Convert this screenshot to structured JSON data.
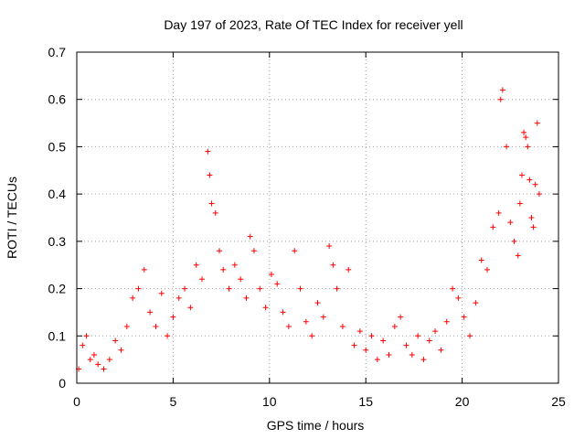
{
  "chart_data": {
    "type": "scatter",
    "title": "Day 197 of 2023, Rate Of TEC Index for receiver yell",
    "xlabel": "GPS time / hours",
    "ylabel": "ROTI / TECUs",
    "xlim": [
      0,
      25
    ],
    "ylim": [
      0,
      0.7
    ],
    "x_ticks": [
      "0",
      "5",
      "10",
      "15",
      "20",
      "25"
    ],
    "y_ticks": [
      "0",
      "0.1",
      "0.2",
      "0.3",
      "0.4",
      "0.5",
      "0.6",
      "0.7"
    ],
    "grid": true,
    "marker": "+",
    "color": "#ff0000",
    "series": [
      {
        "name": "ROTI",
        "x": [
          0.1,
          0.3,
          0.5,
          0.7,
          0.9,
          1.1,
          1.4,
          1.7,
          2.0,
          2.3,
          2.6,
          2.9,
          3.2,
          3.5,
          3.8,
          4.1,
          4.4,
          4.7,
          5.0,
          5.3,
          5.6,
          5.9,
          6.2,
          6.5,
          6.8,
          6.9,
          7.0,
          7.2,
          7.4,
          7.6,
          7.9,
          8.2,
          8.5,
          8.8,
          9.0,
          9.2,
          9.5,
          9.8,
          10.1,
          10.4,
          10.7,
          11.0,
          11.3,
          11.6,
          11.9,
          12.2,
          12.5,
          12.8,
          13.1,
          13.3,
          13.5,
          13.8,
          14.1,
          14.4,
          14.7,
          15.0,
          15.3,
          15.6,
          15.9,
          16.2,
          16.5,
          16.8,
          17.1,
          17.4,
          17.7,
          18.0,
          18.3,
          18.6,
          18.9,
          19.2,
          19.5,
          19.8,
          20.1,
          20.4,
          20.7,
          21.0,
          21.3,
          21.6,
          21.9,
          22.0,
          22.1,
          22.3,
          22.5,
          22.7,
          22.9,
          23.0,
          23.1,
          23.2,
          23.3,
          23.4,
          23.5,
          23.6,
          23.7,
          23.8,
          23.9,
          24.0
        ],
        "y": [
          0.03,
          0.08,
          0.1,
          0.05,
          0.06,
          0.04,
          0.03,
          0.05,
          0.09,
          0.07,
          0.12,
          0.18,
          0.2,
          0.24,
          0.15,
          0.12,
          0.19,
          0.1,
          0.14,
          0.18,
          0.2,
          0.16,
          0.25,
          0.22,
          0.49,
          0.44,
          0.38,
          0.36,
          0.28,
          0.24,
          0.2,
          0.25,
          0.22,
          0.18,
          0.31,
          0.28,
          0.2,
          0.16,
          0.23,
          0.21,
          0.15,
          0.12,
          0.28,
          0.2,
          0.13,
          0.1,
          0.17,
          0.14,
          0.29,
          0.25,
          0.2,
          0.12,
          0.24,
          0.08,
          0.11,
          0.07,
          0.1,
          0.05,
          0.09,
          0.06,
          0.12,
          0.14,
          0.08,
          0.06,
          0.1,
          0.05,
          0.09,
          0.11,
          0.07,
          0.13,
          0.2,
          0.18,
          0.14,
          0.1,
          0.17,
          0.26,
          0.24,
          0.33,
          0.36,
          0.6,
          0.62,
          0.5,
          0.34,
          0.3,
          0.27,
          0.38,
          0.44,
          0.53,
          0.52,
          0.5,
          0.43,
          0.35,
          0.33,
          0.42,
          0.55,
          0.4
        ]
      }
    ]
  }
}
